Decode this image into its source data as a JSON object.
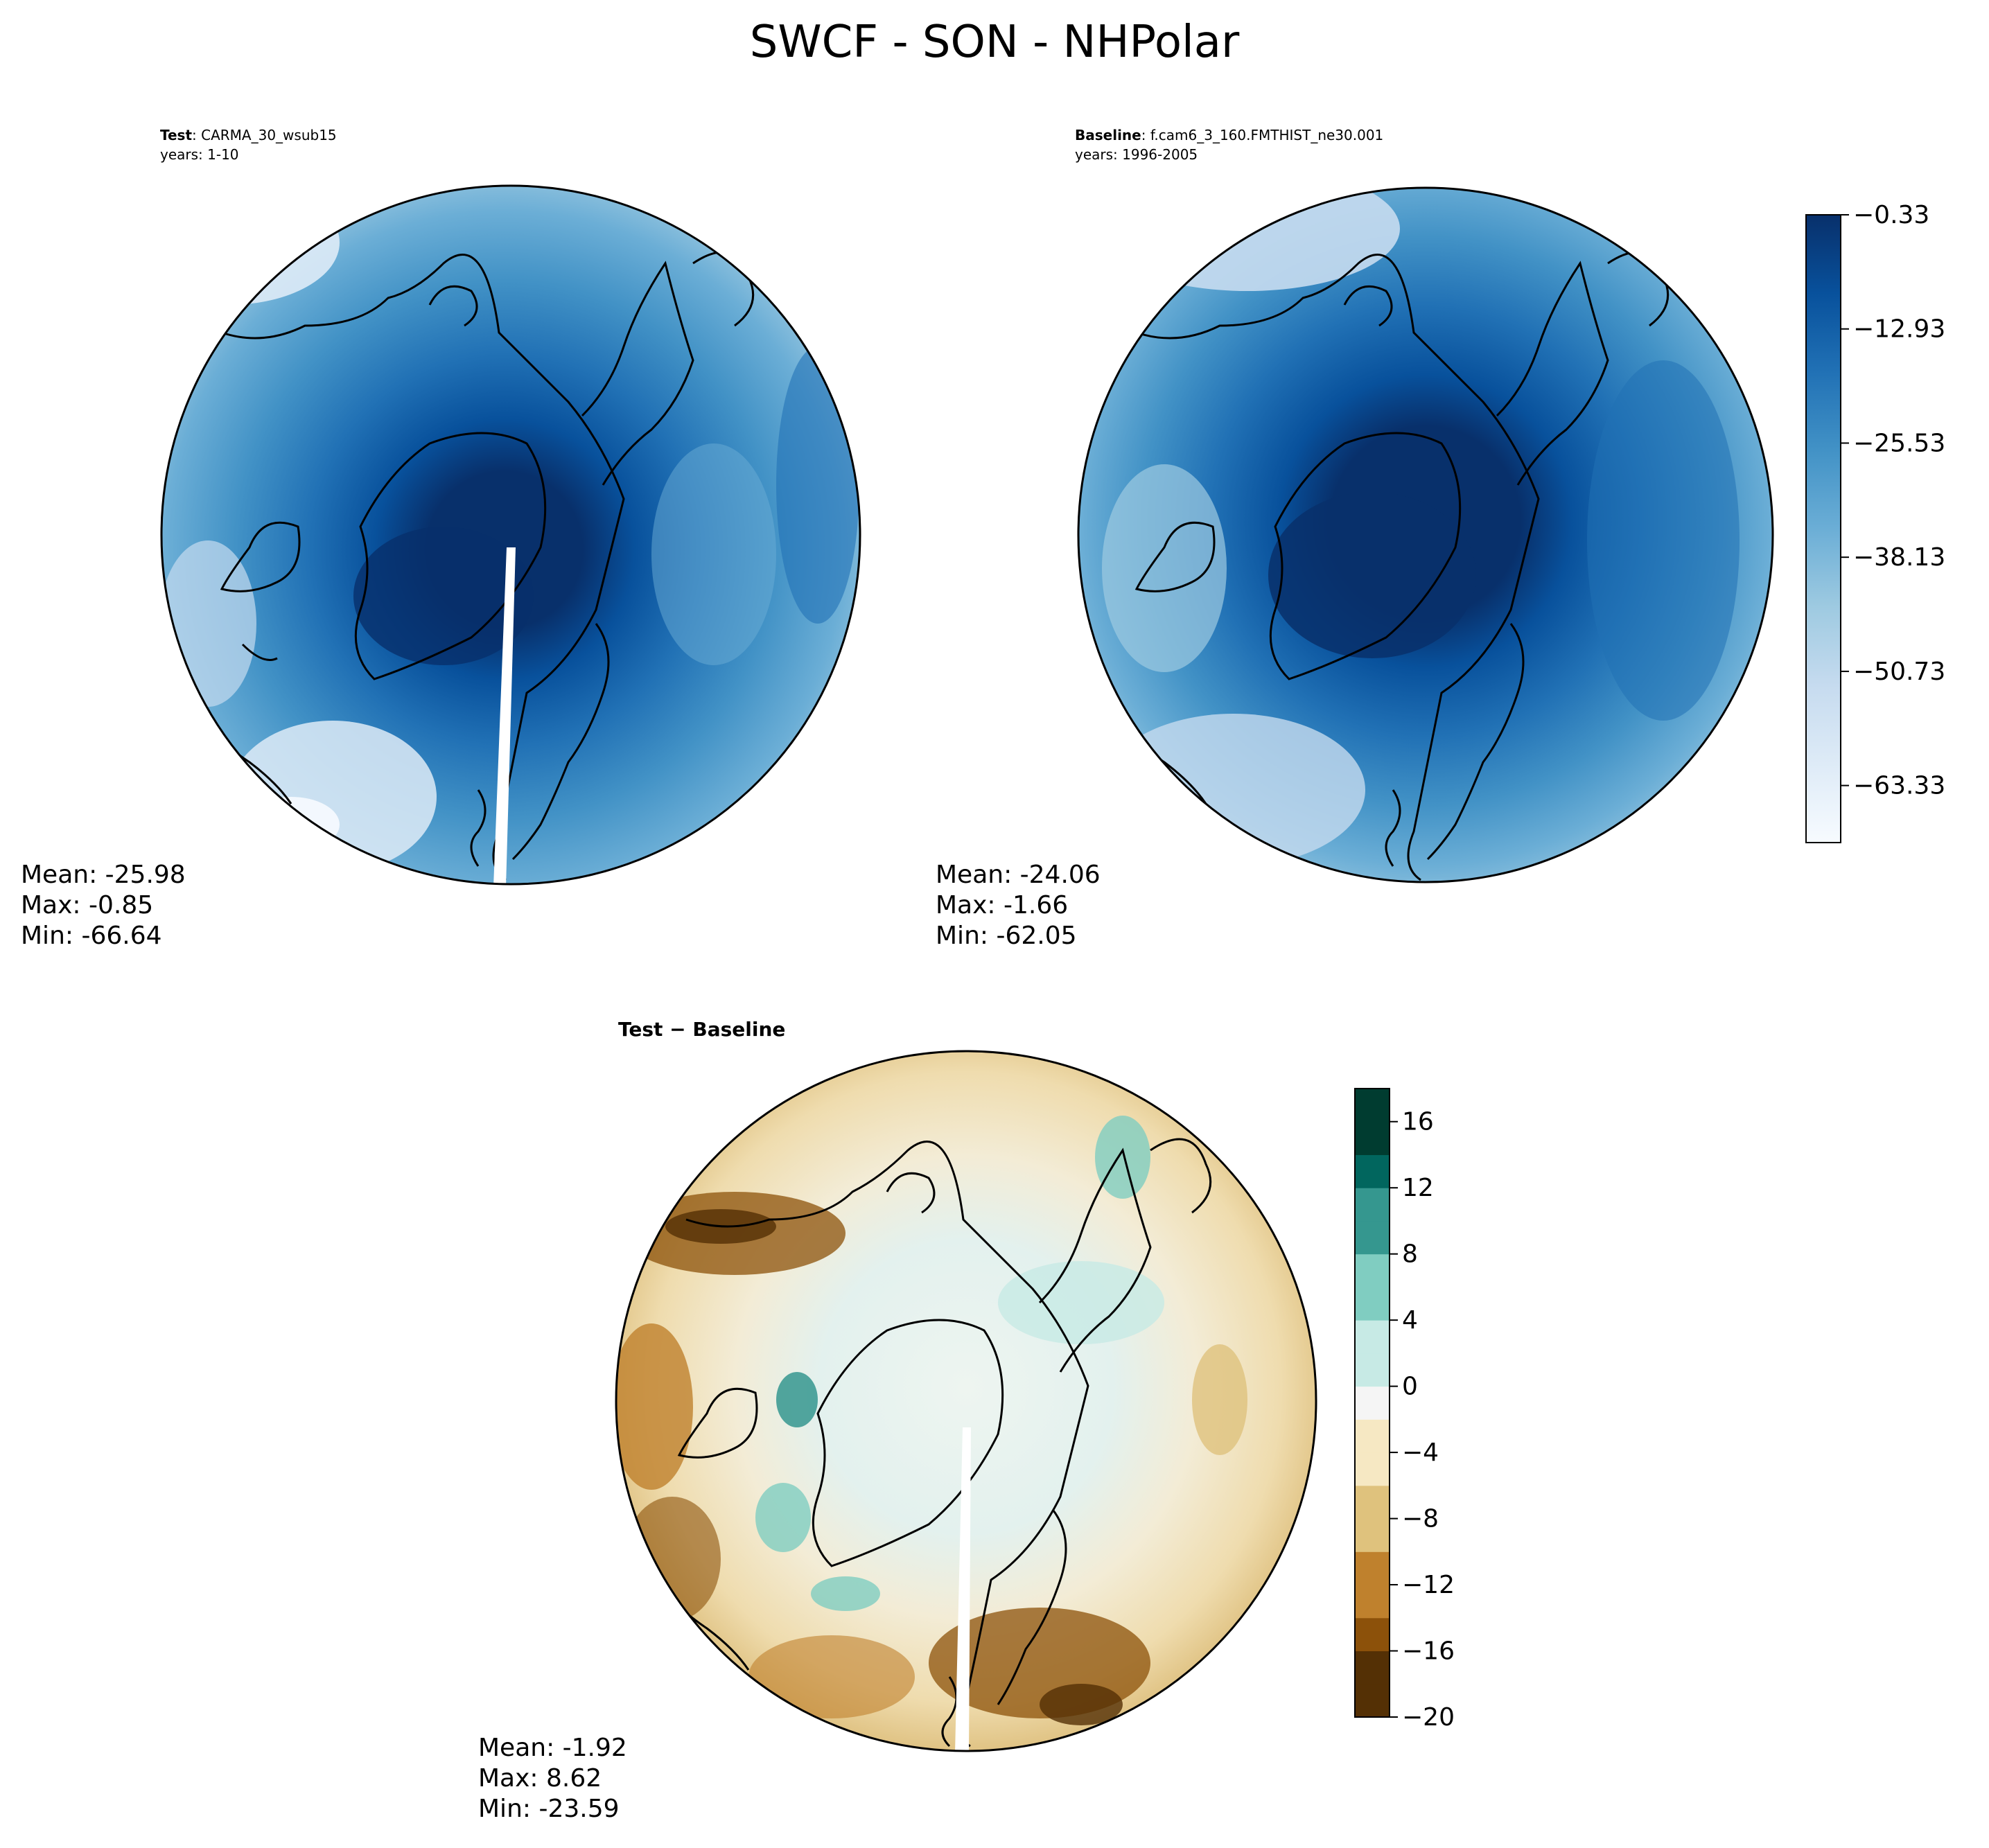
{
  "figure_title": "SWCF - SON - NHPolar",
  "panels": [
    {
      "heading_bold": "Test",
      "heading_rest": ": CARMA_30_wsub15",
      "years": "years: 1-10",
      "stats": {
        "mean": "Mean: -25.98",
        "max": "Max: -0.85",
        "min": "Min: -66.64"
      }
    },
    {
      "heading_bold": "Baseline",
      "heading_rest": ": f.cam6_3_160.FMTHIST_ne30.001",
      "years": "years: 1996-2005",
      "stats": {
        "mean": "Mean: -24.06",
        "max": "Max: -1.66",
        "min": "Min: -62.05"
      }
    },
    {
      "heading_bold": "Test − Baseline",
      "heading_rest": "",
      "years": "",
      "stats": {
        "mean": "Mean: -1.92",
        "max": "Max:  8.62",
        "min": "Min: -23.59"
      }
    }
  ],
  "chart_data": [
    {
      "type": "heatmap",
      "title": "Test : CARMA_30_wsub15",
      "projection": "north-polar-stereographic",
      "mean": -25.98,
      "max": -0.85,
      "min": -66.64,
      "colormap": "Blues",
      "levels_range": [
        -69.63,
        -0.33
      ]
    },
    {
      "type": "heatmap",
      "title": "Baseline : f.cam6_3_160.FMTHIST_ne30.001",
      "projection": "north-polar-stereographic",
      "mean": -24.06,
      "max": -1.66,
      "min": -62.05,
      "colormap": "Blues",
      "colorbar": {
        "ticks": [
          -0.33,
          -12.93,
          -25.53,
          -38.13,
          -50.73,
          -63.33
        ],
        "tick_labels": [
          "−0.33",
          "−12.93",
          "−25.53",
          "−38.13",
          "−50.73",
          "−63.33"
        ],
        "range": [
          -69.63,
          -0.33
        ]
      }
    },
    {
      "type": "heatmap",
      "title": "Test − Baseline",
      "projection": "north-polar-stereographic",
      "mean": -1.92,
      "max": 8.62,
      "min": -23.59,
      "colormap": "BrBG",
      "colorbar": {
        "ticks": [
          16,
          12,
          8,
          4,
          0,
          -4,
          -8,
          -12,
          -16,
          -20
        ],
        "tick_labels": [
          "16",
          "12",
          "8",
          "4",
          "0",
          "−4",
          "−8",
          "−12",
          "−16",
          "−20"
        ],
        "range": [
          -20,
          18
        ]
      }
    }
  ],
  "colors": {
    "blues": [
      "#f7fbff",
      "#deebf7",
      "#c6dbef",
      "#9ecae1",
      "#6baed6",
      "#4292c6",
      "#2171b5",
      "#08519c",
      "#08306b"
    ],
    "brbg": [
      "#543005",
      "#8c510a",
      "#bf812d",
      "#dfc27d",
      "#f6e8c3",
      "#f5f5f5",
      "#c7eae5",
      "#80cdc1",
      "#35978f",
      "#01665e",
      "#003c30"
    ]
  }
}
